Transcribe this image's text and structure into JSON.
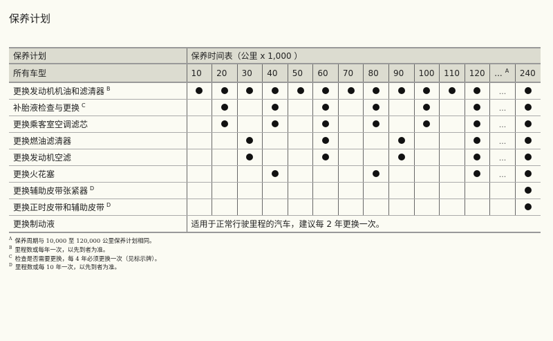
{
  "title": "保养计划",
  "header": {
    "plan": "保养计划",
    "schedule": "保养时间表（公里 x 1,000 ）",
    "models": "所有车型"
  },
  "columns": [
    "10",
    "20",
    "30",
    "40",
    "50",
    "60",
    "70",
    "80",
    "90",
    "100",
    "110",
    "120",
    "...",
    "240"
  ],
  "ellipsis_note": "A",
  "ellipsis": "...",
  "rows": [
    {
      "label": "更换发动机机油和滤清器",
      "note": "B",
      "marks": [
        "10",
        "20",
        "30",
        "40",
        "50",
        "60",
        "70",
        "80",
        "90",
        "100",
        "110",
        "120",
        "240"
      ],
      "ellipsis": true
    },
    {
      "label": "补胎液检查与更换",
      "note": "C",
      "marks": [
        "20",
        "40",
        "60",
        "80",
        "100",
        "120",
        "240"
      ],
      "ellipsis": true
    },
    {
      "label": "更换乘客室空调滤芯",
      "note": "",
      "marks": [
        "20",
        "40",
        "60",
        "80",
        "100",
        "120",
        "240"
      ],
      "ellipsis": true
    },
    {
      "label": "更换燃油滤清器",
      "note": "",
      "marks": [
        "30",
        "60",
        "90",
        "120",
        "240"
      ],
      "ellipsis": true
    },
    {
      "label": "更换发动机空滤",
      "note": "",
      "marks": [
        "30",
        "60",
        "90",
        "120",
        "240"
      ],
      "ellipsis": true
    },
    {
      "label": "更换火花塞",
      "note": "",
      "marks": [
        "40",
        "80",
        "120",
        "240"
      ],
      "ellipsis": true
    },
    {
      "label": "更换辅助皮带张紧器",
      "note": "D",
      "marks": [
        "240"
      ],
      "ellipsis": false
    },
    {
      "label": "更换正时皮带和辅助皮带",
      "note": "D",
      "marks": [
        "240"
      ],
      "ellipsis": false
    }
  ],
  "brake": {
    "label": "更换制动液",
    "text": "适用于正常行驶里程的汽车，建议每 2 年更换一次。"
  },
  "footnotes": [
    {
      "key": "A",
      "text": "保养周期与 10,000 至 120,000 公里保养计划相同。"
    },
    {
      "key": "B",
      "text": "里程数或每年一次，以先到者为准。"
    },
    {
      "key": "C",
      "text": "检查是否需要更换，每 4 年必须更换一次（见标示牌）。"
    },
    {
      "key": "D",
      "text": "里程数或每 10 年一次，以先到者为准。"
    }
  ]
}
